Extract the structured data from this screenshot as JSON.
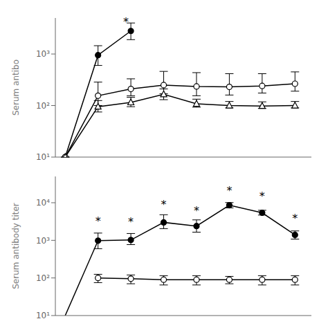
{
  "chart_data": [
    {
      "type": "line",
      "y_label": "Serum antibo",
      "x": [
        0,
        1,
        2,
        3,
        4,
        5,
        6,
        7
      ],
      "xlim": [
        -0.3,
        7.5
      ],
      "ylim": [
        10,
        5000
      ],
      "yticks": [
        {
          "value": 10,
          "label": "10¹"
        },
        {
          "value": 100,
          "label": "10²"
        },
        {
          "value": 1000,
          "label": "10³"
        }
      ],
      "log": "y",
      "grid": false,
      "tick_labels": "y",
      "series": [
        {
          "color": "#000000",
          "marker": "circle",
          "values": [
            10,
            950,
            2800,
            null,
            null,
            null,
            null,
            null
          ],
          "error_low": [
            0,
            350,
            900,
            null,
            null,
            null,
            null,
            null
          ],
          "error_high": [
            0,
            500,
            1200,
            null,
            null,
            null,
            null,
            null
          ]
        },
        {
          "color": "#000000",
          "marker": "open_circle",
          "values": [
            10,
            155,
            210,
            250,
            235,
            230,
            240,
            265
          ],
          "error_low": [
            0,
            55,
            55,
            80,
            80,
            70,
            65,
            75
          ],
          "error_high": [
            0,
            130,
            120,
            210,
            200,
            185,
            175,
            185
          ]
        },
        {
          "color": "#000000",
          "marker": "open_triangle",
          "values": [
            10,
            95,
            115,
            165,
            108,
            100,
            98,
            100
          ],
          "error_low": [
            0,
            20,
            20,
            35,
            15,
            10,
            10,
            10
          ],
          "error_high": [
            0,
            30,
            30,
            45,
            25,
            20,
            20,
            20
          ]
        }
      ],
      "annotations": [
        {
          "text": "*",
          "x": 1.85,
          "y": 4200,
          "position": "center"
        }
      ]
    },
    {
      "type": "line",
      "y_label": "Serum antibody titer",
      "x": [
        0,
        1,
        2,
        3,
        4,
        5,
        6,
        7
      ],
      "xlim": [
        -0.3,
        7.5
      ],
      "ylim": [
        10,
        50000
      ],
      "yticks": [
        {
          "value": 10,
          "label": "10¹"
        },
        {
          "value": 100,
          "label": "10²"
        },
        {
          "value": 1000,
          "label": "10³"
        },
        {
          "value": 10000,
          "label": "10⁴"
        }
      ],
      "log": "y",
      "grid": false,
      "tick_labels": "y",
      "series": [
        {
          "color": "#000000",
          "marker": "none",
          "values": [
            10,
            980,
            null,
            null,
            null,
            null,
            null,
            null
          ]
        },
        {
          "color": "#000000",
          "marker": "circle",
          "values": [
            null,
            980,
            1020,
            3000,
            2400,
            8600,
            5400,
            1400
          ],
          "error_low": [
            null,
            380,
            250,
            950,
            750,
            1300,
            700,
            320
          ],
          "error_high": [
            null,
            580,
            500,
            1800,
            1100,
            1500,
            900,
            380
          ]
        },
        {
          "color": "#000000",
          "marker": "open_circle",
          "values": [
            null,
            100,
            95,
            90,
            90,
            90,
            90,
            90
          ],
          "error_low": [
            null,
            25,
            25,
            25,
            25,
            20,
            25,
            25
          ],
          "error_high": [
            null,
            25,
            25,
            25,
            25,
            20,
            25,
            25
          ]
        }
      ],
      "annotations": [
        {
          "text": "*",
          "x": 1,
          "y": 2100,
          "position": "top"
        },
        {
          "text": "*",
          "x": 2,
          "y": 2000,
          "position": "top"
        },
        {
          "text": "*",
          "x": 3,
          "y": 5800,
          "position": "top"
        },
        {
          "text": "*",
          "x": 4,
          "y": 4000,
          "position": "top"
        },
        {
          "text": "*",
          "x": 5,
          "y": 13500,
          "position": "top"
        },
        {
          "text": "*",
          "x": 6,
          "y": 9500,
          "position": "top"
        },
        {
          "text": "*",
          "x": 7,
          "y": 2500,
          "position": "top"
        }
      ]
    }
  ]
}
